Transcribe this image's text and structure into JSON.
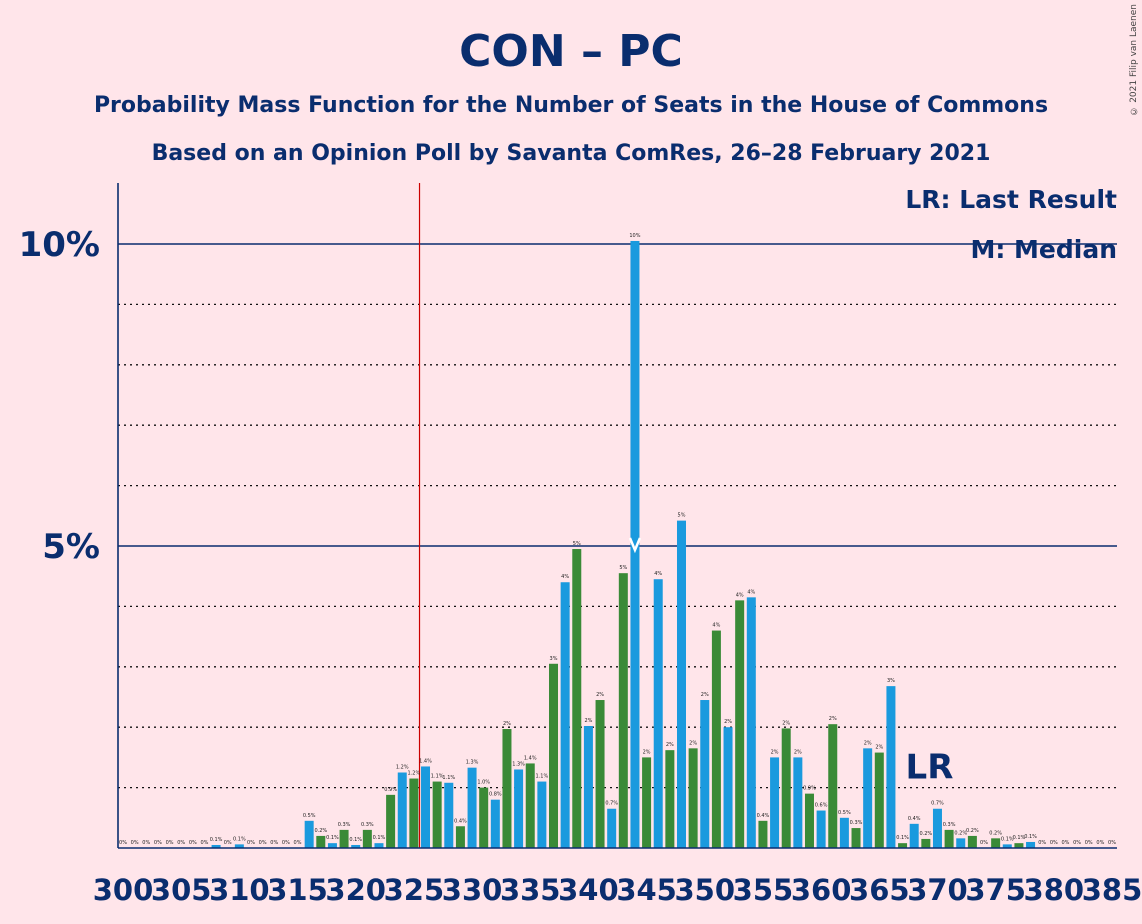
{
  "header": {
    "title": "CON – PC",
    "subtitle": "Probability Mass Function for the Number of Seats in the House of Commons",
    "source": "Based on an Opinion Poll by Savanta ComRes, 26–28 February 2021",
    "copyright": "© 2021 Filip van Laenen"
  },
  "legend": {
    "lr": "LR: Last Result",
    "median": "M: Median",
    "lr_marker": "LR",
    "placement": "top-right"
  },
  "colors": {
    "background": "#ffe5ea",
    "blue": "#1a9ade",
    "green": "#3a8a37",
    "axis": "#0a2d6e",
    "threshold": "#cc0000"
  },
  "chart_data": {
    "type": "bar",
    "xlim": [
      300,
      385
    ],
    "ylim": [
      0,
      11
    ],
    "yticks": [
      {
        "value": 5,
        "label": "5%"
      },
      {
        "value": 10,
        "label": "10%"
      }
    ],
    "xtick_labels": [
      "300",
      "305",
      "310",
      "315",
      "320",
      "325",
      "330",
      "335",
      "340",
      "345",
      "350",
      "355",
      "360",
      "365",
      "370",
      "375",
      "380",
      "385"
    ],
    "majority_threshold": 326,
    "last_result": 370,
    "median": 344,
    "grid": true,
    "points": [
      {
        "seats": 300,
        "value": 0.0,
        "label": "0%"
      },
      {
        "seats": 301,
        "value": 0.0,
        "label": "0%"
      },
      {
        "seats": 302,
        "value": 0.0,
        "label": "0%"
      },
      {
        "seats": 303,
        "value": 0.0,
        "label": "0%"
      },
      {
        "seats": 304,
        "value": 0.0,
        "label": "0%"
      },
      {
        "seats": 305,
        "value": 0.0,
        "label": "0%"
      },
      {
        "seats": 306,
        "value": 0.0,
        "label": "0%"
      },
      {
        "seats": 307,
        "value": 0.0,
        "label": "0%"
      },
      {
        "seats": 308,
        "value": 0.05,
        "label": "0.1%"
      },
      {
        "seats": 309,
        "value": 0.0,
        "label": "0%"
      },
      {
        "seats": 310,
        "value": 0.06,
        "label": "0.1%"
      },
      {
        "seats": 311,
        "value": 0.0,
        "label": "0%"
      },
      {
        "seats": 312,
        "value": 0.0,
        "label": "0%"
      },
      {
        "seats": 313,
        "value": 0.0,
        "label": "0%"
      },
      {
        "seats": 314,
        "value": 0.0,
        "label": "0%"
      },
      {
        "seats": 315,
        "value": 0.0,
        "label": "0%"
      },
      {
        "seats": 316,
        "value": 0.45,
        "label": "0.5%"
      },
      {
        "seats": 317,
        "value": 0.2,
        "label": "0.2%"
      },
      {
        "seats": 318,
        "value": 0.08,
        "label": "0.1%"
      },
      {
        "seats": 319,
        "value": 0.3,
        "label": "0.3%"
      },
      {
        "seats": 320,
        "value": 0.05,
        "label": "0.1%"
      },
      {
        "seats": 321,
        "value": 0.3,
        "label": "0.3%"
      },
      {
        "seats": 322,
        "value": 0.08,
        "label": "0.1%"
      },
      {
        "seats": 323,
        "value": 0.88,
        "label": "0.9%"
      },
      {
        "seats": 324,
        "value": 1.25,
        "label": "1.2%"
      },
      {
        "seats": 325,
        "value": 1.15,
        "label": "1.2%"
      },
      {
        "seats": 326,
        "value": 1.35,
        "label": "1.4%"
      },
      {
        "seats": 327,
        "value": 1.1,
        "label": "1.1%"
      },
      {
        "seats": 328,
        "value": 1.08,
        "label": "1.1%"
      },
      {
        "seats": 329,
        "value": 0.36,
        "label": "0.4%"
      },
      {
        "seats": 330,
        "value": 1.33,
        "label": "1.3%"
      },
      {
        "seats": 331,
        "value": 1.0,
        "label": "1.0%"
      },
      {
        "seats": 332,
        "value": 0.8,
        "label": "0.8%"
      },
      {
        "seats": 333,
        "value": 1.97,
        "label": "2%"
      },
      {
        "seats": 334,
        "value": 1.3,
        "label": "1.3%"
      },
      {
        "seats": 335,
        "value": 1.4,
        "label": "1.4%"
      },
      {
        "seats": 336,
        "value": 1.1,
        "label": "1.1%"
      },
      {
        "seats": 337,
        "value": 3.05,
        "label": "3%"
      },
      {
        "seats": 338,
        "value": 4.4,
        "label": "4%"
      },
      {
        "seats": 339,
        "value": 4.95,
        "label": "5%"
      },
      {
        "seats": 340,
        "value": 2.02,
        "label": "2%"
      },
      {
        "seats": 341,
        "value": 2.45,
        "label": "2%"
      },
      {
        "seats": 342,
        "value": 0.65,
        "label": "0.7%"
      },
      {
        "seats": 343,
        "value": 4.55,
        "label": "5%"
      },
      {
        "seats": 344,
        "value": 10.05,
        "label": "10%"
      },
      {
        "seats": 345,
        "value": 1.5,
        "label": "2%"
      },
      {
        "seats": 346,
        "value": 4.45,
        "label": "4%"
      },
      {
        "seats": 347,
        "value": 1.62,
        "label": "2%"
      },
      {
        "seats": 348,
        "value": 5.42,
        "label": "5%"
      },
      {
        "seats": 349,
        "value": 1.65,
        "label": "2%"
      },
      {
        "seats": 350,
        "value": 2.45,
        "label": "2%"
      },
      {
        "seats": 351,
        "value": 3.6,
        "label": "4%"
      },
      {
        "seats": 352,
        "value": 2.0,
        "label": "2%"
      },
      {
        "seats": 353,
        "value": 4.1,
        "label": "4%"
      },
      {
        "seats": 354,
        "value": 4.15,
        "label": "4%"
      },
      {
        "seats": 355,
        "value": 0.45,
        "label": "0.4%"
      },
      {
        "seats": 356,
        "value": 1.5,
        "label": "2%"
      },
      {
        "seats": 357,
        "value": 1.98,
        "label": "2%"
      },
      {
        "seats": 358,
        "value": 1.5,
        "label": "2%"
      },
      {
        "seats": 359,
        "value": 0.9,
        "label": "0.9%"
      },
      {
        "seats": 360,
        "value": 0.62,
        "label": "0.6%"
      },
      {
        "seats": 361,
        "value": 2.05,
        "label": "2%"
      },
      {
        "seats": 362,
        "value": 0.5,
        "label": "0.5%"
      },
      {
        "seats": 363,
        "value": 0.33,
        "label": "0.3%"
      },
      {
        "seats": 364,
        "value": 1.65,
        "label": "2%"
      },
      {
        "seats": 365,
        "value": 1.58,
        "label": "2%"
      },
      {
        "seats": 366,
        "value": 2.68,
        "label": "3%"
      },
      {
        "seats": 367,
        "value": 0.08,
        "label": "0.1%"
      },
      {
        "seats": 368,
        "value": 0.4,
        "label": "0.4%"
      },
      {
        "seats": 369,
        "value": 0.15,
        "label": "0.2%"
      },
      {
        "seats": 370,
        "value": 0.65,
        "label": "0.7%"
      },
      {
        "seats": 371,
        "value": 0.3,
        "label": "0.3%"
      },
      {
        "seats": 372,
        "value": 0.16,
        "label": "0.2%"
      },
      {
        "seats": 373,
        "value": 0.2,
        "label": "0.2%"
      },
      {
        "seats": 374,
        "value": 0.0,
        "label": "0%"
      },
      {
        "seats": 375,
        "value": 0.16,
        "label": "0.2%"
      },
      {
        "seats": 376,
        "value": 0.06,
        "label": "0.1%"
      },
      {
        "seats": 377,
        "value": 0.08,
        "label": "0.1%"
      },
      {
        "seats": 378,
        "value": 0.1,
        "label": "0.1%"
      },
      {
        "seats": 379,
        "value": 0.0,
        "label": "0%"
      },
      {
        "seats": 380,
        "value": 0.0,
        "label": "0%"
      },
      {
        "seats": 381,
        "value": 0.0,
        "label": "0%"
      },
      {
        "seats": 382,
        "value": 0.0,
        "label": "0%"
      },
      {
        "seats": 383,
        "value": 0.0,
        "label": "0%"
      },
      {
        "seats": 384,
        "value": 0.0,
        "label": "0%"
      },
      {
        "seats": 385,
        "value": 0.0,
        "label": "0%"
      }
    ]
  }
}
